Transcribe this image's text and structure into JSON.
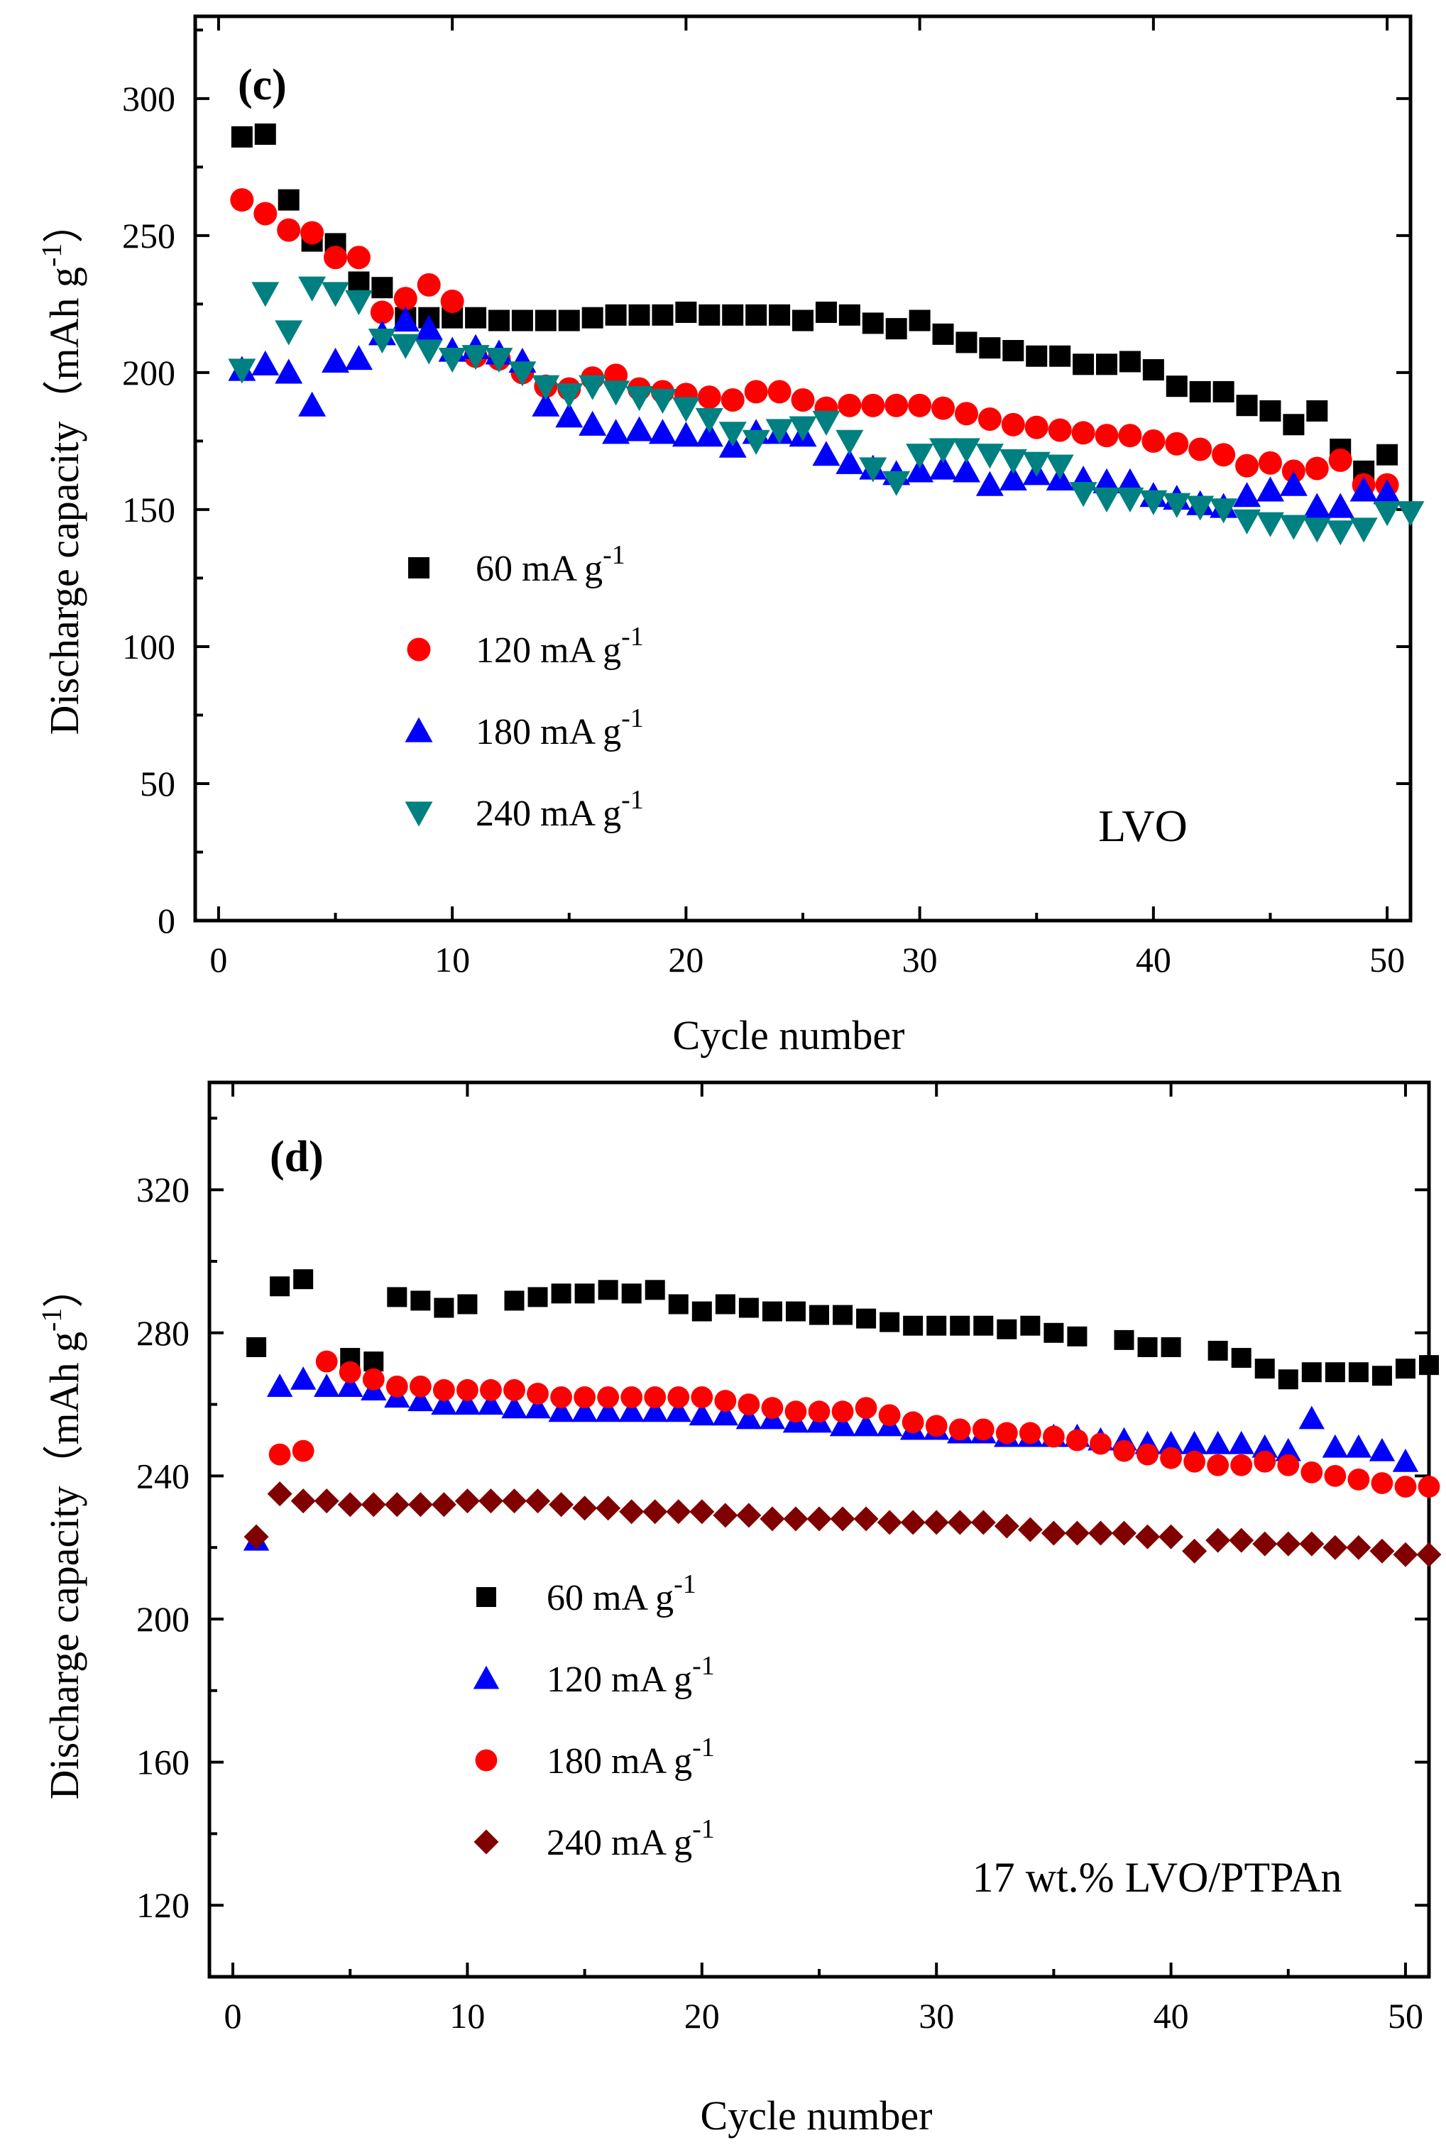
{
  "chart_data": [
    {
      "type": "scatter",
      "panel_label": "(c)",
      "annotation": "LVO",
      "xlabel": "Cycle number",
      "ylabel": "Discharge capacity（mAh g",
      "ylabel_sup": "-1",
      "ylabel_close": "）",
      "xlim": [
        -1,
        51
      ],
      "ylim": [
        0,
        330
      ],
      "xticks": [
        "0",
        "10",
        "20",
        "30",
        "40",
        "50"
      ],
      "xtick_values": [
        0,
        10,
        20,
        30,
        40,
        50
      ],
      "yticks": [
        "0",
        "50",
        "100",
        "150",
        "200",
        "250",
        "300"
      ],
      "ytick_values": [
        0,
        50,
        100,
        150,
        200,
        250,
        300
      ],
      "legend": [
        {
          "label": "60 mA g",
          "sup": "-1",
          "marker": "square",
          "color": "#000000"
        },
        {
          "label": "120 mA g",
          "sup": "-1",
          "marker": "circle",
          "color": "#ff0000"
        },
        {
          "label": "180 mA g",
          "sup": "-1",
          "marker": "triangle-up",
          "color": "#0000ff"
        },
        {
          "label": "240 mA g",
          "sup": "-1",
          "marker": "triangle-down",
          "color": "#008080"
        }
      ],
      "series": [
        {
          "name": "60 mA g-1",
          "marker": "square",
          "color": "#000000",
          "values": [
            286,
            287,
            263,
            248,
            247,
            233,
            231,
            220,
            220,
            220,
            220,
            219,
            219,
            219,
            219,
            220,
            221,
            221,
            221,
            222,
            221,
            221,
            221,
            221,
            219,
            222,
            221,
            218,
            216,
            219,
            214,
            211,
            209,
            208,
            206,
            206,
            203,
            203,
            204,
            201,
            195,
            193,
            193,
            188,
            186,
            181,
            186,
            172,
            164,
            170
          ]
        },
        {
          "name": "120 mA g-1",
          "marker": "circle",
          "color": "#ff0000",
          "values": [
            263,
            258,
            252,
            251,
            242,
            242,
            222,
            227,
            232,
            226,
            206,
            205,
            200,
            195,
            194,
            198,
            199,
            194,
            193,
            192,
            191,
            190,
            193,
            193,
            190,
            187,
            188,
            188,
            188,
            188,
            187,
            185,
            183,
            181,
            180,
            179,
            178,
            177,
            177,
            175,
            174,
            172,
            170,
            166,
            167,
            164,
            165,
            168,
            159,
            159
          ]
        },
        {
          "name": "180 mA g-1",
          "marker": "triangle-up",
          "color": "#0000ff",
          "values": [
            201,
            203,
            200,
            188,
            204,
            205,
            214,
            219,
            216,
            208,
            209,
            207,
            204,
            188,
            184,
            181,
            178,
            179,
            178,
            177,
            177,
            173,
            178,
            178,
            177,
            170,
            167,
            165,
            163,
            164,
            165,
            164,
            159,
            161,
            163,
            161,
            161,
            160,
            160,
            155,
            154,
            152,
            151,
            155,
            157,
            159,
            151,
            151,
            157,
            156
          ]
        },
        {
          "name": "240 mA g-1",
          "marker": "triangle-down",
          "color": "#008080",
          "values": [
            201,
            229,
            215,
            231,
            229,
            226,
            212,
            210,
            208,
            205,
            206,
            205,
            200,
            195,
            192,
            195,
            193,
            191,
            190,
            187,
            183,
            178,
            175,
            179,
            180,
            182,
            175,
            165,
            160,
            170,
            172,
            172,
            170,
            168,
            167,
            166,
            156,
            154,
            154,
            153,
            152,
            151,
            150,
            146,
            145,
            144,
            143,
            142,
            143,
            149,
            149
          ]
        }
      ]
    },
    {
      "type": "scatter",
      "panel_label": "(d)",
      "annotation": "17 wt.% LVO/PTPAn",
      "xlabel": "Cycle number",
      "ylabel": "Discharge capacity（mAh g",
      "ylabel_sup": "-1",
      "ylabel_close": "）",
      "xlim": [
        -1,
        51
      ],
      "ylim": [
        100,
        350
      ],
      "xticks": [
        "0",
        "10",
        "20",
        "30",
        "40",
        "50"
      ],
      "xtick_values": [
        0,
        10,
        20,
        30,
        40,
        50
      ],
      "yticks": [
        "120",
        "160",
        "200",
        "240",
        "280",
        "320"
      ],
      "ytick_values": [
        120,
        160,
        200,
        240,
        280,
        320
      ],
      "legend": [
        {
          "label": "60 mA g",
          "sup": "-1",
          "marker": "square",
          "color": "#000000"
        },
        {
          "label": "120 mA g",
          "sup": "-1",
          "marker": "triangle-up",
          "color": "#0000ff"
        },
        {
          "label": "180 mA g",
          "sup": "-1",
          "marker": "circle",
          "color": "#ff0000"
        },
        {
          "label": "240 mA g",
          "sup": "-1",
          "marker": "diamond",
          "color": "#800000"
        }
      ],
      "series": [
        {
          "name": "60 mA g-1",
          "marker": "square",
          "color": "#000000",
          "values": [
            276,
            293,
            295,
            null,
            273,
            272,
            290,
            289,
            287,
            288,
            null,
            289,
            290,
            291,
            291,
            292,
            291,
            292,
            288,
            286,
            288,
            287,
            286,
            286,
            285,
            285,
            284,
            283,
            282,
            282,
            282,
            282,
            281,
            282,
            280,
            279,
            null,
            278,
            276,
            276,
            null,
            275,
            273,
            270,
            267,
            269,
            269,
            269,
            268,
            270,
            271
          ]
        },
        {
          "name": "120 mA g-1",
          "marker": "triangle-up",
          "color": "#0000ff",
          "values": [
            222,
            265,
            267,
            265,
            265,
            264,
            262,
            261,
            260,
            260,
            260,
            259,
            259,
            258,
            258,
            258,
            258,
            258,
            258,
            257,
            257,
            256,
            256,
            255,
            255,
            254,
            254,
            254,
            253,
            253,
            252,
            252,
            251,
            251,
            251,
            251,
            250,
            250,
            249,
            249,
            249,
            249,
            249,
            248,
            247,
            256,
            248,
            248,
            247,
            244
          ]
        },
        {
          "name": "180 mA g-1",
          "marker": "circle",
          "color": "#ff0000",
          "values": [
            null,
            246,
            247,
            272,
            269,
            267,
            265,
            265,
            264,
            264,
            264,
            264,
            263,
            262,
            262,
            262,
            262,
            262,
            262,
            262,
            261,
            260,
            259,
            258,
            258,
            258,
            259,
            257,
            255,
            254,
            253,
            253,
            252,
            252,
            251,
            250,
            249,
            247,
            246,
            245,
            244,
            243,
            243,
            244,
            243,
            241,
            240,
            239,
            238,
            237,
            237
          ]
        },
        {
          "name": "240 mA g-1",
          "marker": "diamond",
          "color": "#800000",
          "values": [
            223,
            235,
            233,
            233,
            232,
            232,
            232,
            232,
            232,
            233,
            233,
            233,
            233,
            232,
            231,
            231,
            230,
            230,
            230,
            230,
            229,
            229,
            228,
            228,
            228,
            228,
            228,
            227,
            227,
            227,
            227,
            227,
            226,
            225,
            224,
            224,
            224,
            224,
            223,
            223,
            219,
            222,
            222,
            221,
            221,
            221,
            220,
            220,
            219,
            218,
            218
          ]
        }
      ]
    }
  ]
}
